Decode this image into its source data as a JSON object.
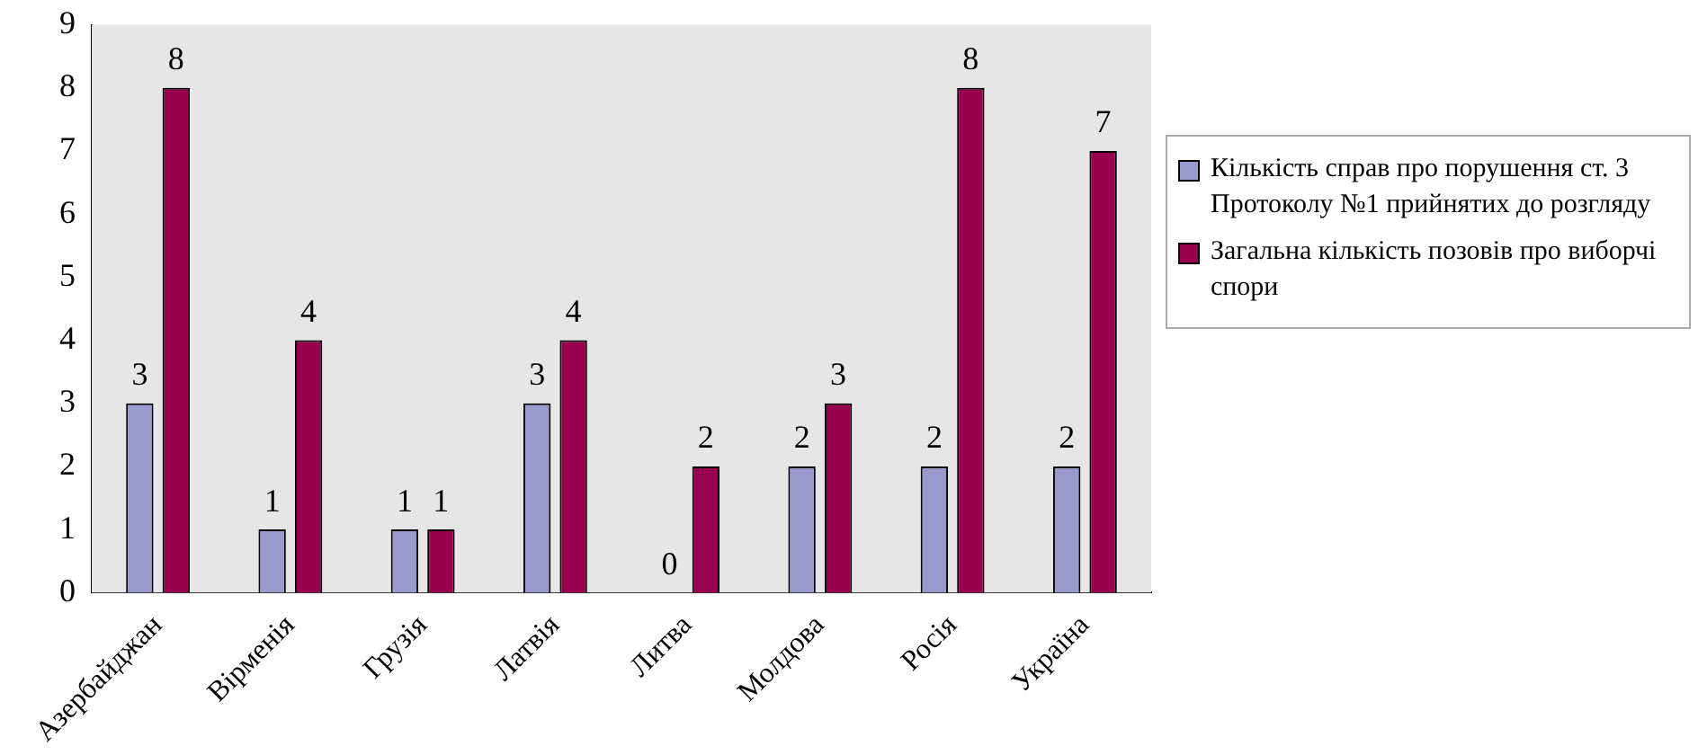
{
  "chart_data": {
    "type": "bar",
    "categories": [
      "Азербайджан",
      "Вірменія",
      "Грузія",
      "Латвія",
      "Литва",
      "Молдова",
      "Росія",
      "Україна"
    ],
    "series": [
      {
        "name": "Кількість справ про порушення ст. 3 Протоколу №1 прийнятих до розгляду",
        "color": "#9999cc",
        "values": [
          3,
          1,
          1,
          3,
          0,
          2,
          2,
          2
        ]
      },
      {
        "name": "Загальна кількість позовів про виборчі спори",
        "color": "#990050",
        "values": [
          8,
          4,
          1,
          4,
          2,
          3,
          8,
          7
        ]
      }
    ],
    "ylim": [
      0,
      9
    ],
    "yticks": [
      0,
      1,
      2,
      3,
      4,
      5,
      6,
      7,
      8,
      9
    ],
    "grid": false,
    "legend": "right",
    "data_labels": true
  }
}
